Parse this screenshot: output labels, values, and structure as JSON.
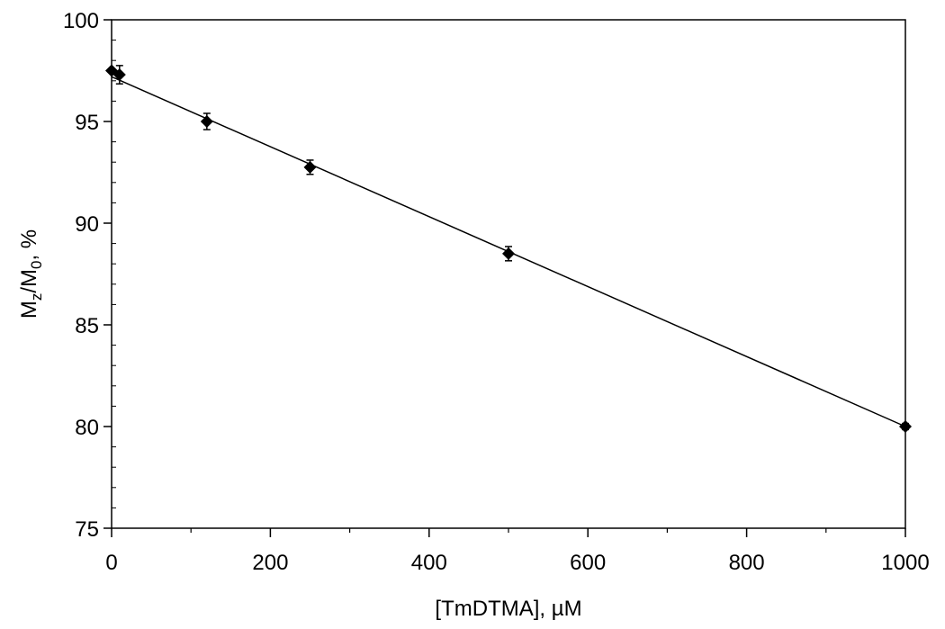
{
  "chart_data": {
    "type": "scatter",
    "title": "",
    "xlabel": "[TmDTMA], µM",
    "ylabel": {
      "main": "M",
      "sub1": "z",
      "mid": "/M",
      "sub2": "0",
      "tail": ", %"
    },
    "xlim": [
      0,
      1000
    ],
    "ylim": [
      75,
      100
    ],
    "x_ticks": [
      0,
      200,
      400,
      600,
      800,
      1000
    ],
    "x_minor_ticks": [
      100,
      300,
      500,
      700,
      900
    ],
    "y_ticks": [
      75,
      80,
      85,
      90,
      95,
      100
    ],
    "y_minor_ticks": [
      76,
      77,
      78,
      79,
      81,
      82,
      83,
      84,
      86,
      87,
      88,
      89,
      91,
      92,
      93,
      94,
      96,
      97,
      98,
      99
    ],
    "grid": false,
    "legend": "none",
    "series": [
      {
        "marker": "diamond",
        "color": "#000000",
        "points": [
          {
            "x": 0,
            "y": 97.5,
            "err": 0.0
          },
          {
            "x": 10,
            "y": 97.3,
            "err": 0.45
          },
          {
            "x": 120,
            "y": 95.0,
            "err": 0.4
          },
          {
            "x": 250,
            "y": 92.75,
            "err": 0.35
          },
          {
            "x": 500,
            "y": 88.5,
            "err": 0.35
          },
          {
            "x": 1000,
            "y": 80.0,
            "err": 0.15
          }
        ]
      }
    ],
    "fit_line": {
      "x": [
        0,
        1000
      ],
      "y": [
        97.2,
        80.0
      ],
      "color": "#000000"
    }
  }
}
